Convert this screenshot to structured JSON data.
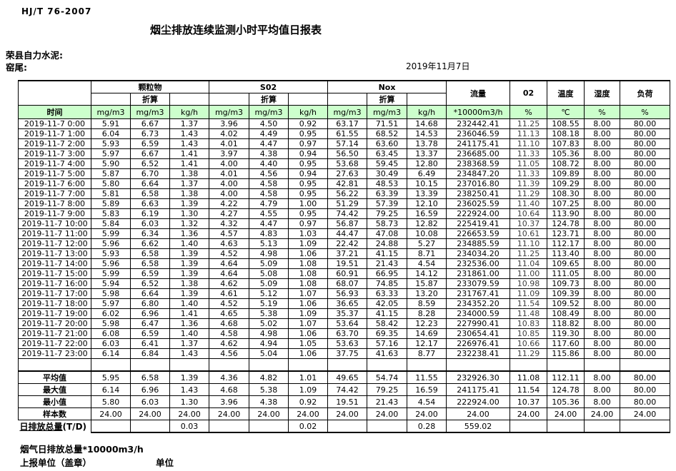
{
  "page": {
    "standard_code": "HJ/T  76-2007",
    "title": "烟尘排放连续监测小时平均值日报表",
    "company": "荣县自力水泥:",
    "site": "窑尾:",
    "date": "2019年11月7日",
    "footnote": "烟气日排放总量*10000m3/h",
    "report_unit": "上报单位（盖章）",
    "unit_label": "单位"
  },
  "colors": {
    "header_green": "#CCFFCC",
    "border": "#000000"
  },
  "table": {
    "time_header": "时间",
    "groups": {
      "pm": "颗粒物",
      "so2": "S02",
      "nox": "Nox"
    },
    "converted_label": "折算",
    "flow_header": "流量",
    "o2_header": "02",
    "temp_header": "温度",
    "humidity_header": "湿度",
    "load_header": "负荷",
    "units": [
      "mg/m3",
      "mg/m3",
      "kg/h",
      "mg/m3",
      "mg/m3",
      "kg/h",
      "mg/m3",
      "mg/m3",
      "kg/h",
      "*10000m3/h",
      "%",
      "℃",
      "%",
      "%"
    ],
    "rows": [
      {
        "time": "2019-11-7 0:00",
        "values": [
          "5.91",
          "6.67",
          "1.37",
          "3.96",
          "4.50",
          "0.92",
          "63.17",
          "71.51",
          "14.68",
          "232442.41",
          "11.25",
          "108.55",
          "8.00",
          "80.00"
        ]
      },
      {
        "time": "2019-11-7 1:00",
        "values": [
          "6.04",
          "6.73",
          "1.43",
          "4.02",
          "4.49",
          "0.95",
          "61.55",
          "68.52",
          "14.53",
          "236046.59",
          "11.13",
          "108.18",
          "8.00",
          "80.00"
        ]
      },
      {
        "time": "2019-11-7 2:00",
        "values": [
          "5.93",
          "6.59",
          "1.43",
          "4.01",
          "4.47",
          "0.97",
          "57.14",
          "63.60",
          "13.78",
          "241175.41",
          "11.10",
          "107.83",
          "8.00",
          "80.00"
        ]
      },
      {
        "time": "2019-11-7 3:00",
        "values": [
          "5.97",
          "6.67",
          "1.41",
          "3.97",
          "4.38",
          "0.94",
          "56.50",
          "63.45",
          "13.37",
          "236685.00",
          "11.33",
          "105.36",
          "8.00",
          "80.00"
        ]
      },
      {
        "time": "2019-11-7 4:00",
        "values": [
          "5.90",
          "6.52",
          "1.41",
          "4.00",
          "4.40",
          "0.95",
          "53.68",
          "59.45",
          "12.80",
          "238368.59",
          "11.05",
          "108.72",
          "8.00",
          "80.00"
        ]
      },
      {
        "time": "2019-11-7 5:00",
        "values": [
          "5.87",
          "6.70",
          "1.38",
          "4.01",
          "4.56",
          "0.94",
          "27.63",
          "30.49",
          "6.49",
          "234847.20",
          "11.33",
          "109.89",
          "8.00",
          "80.00"
        ]
      },
      {
        "time": "2019-11-7 6:00",
        "values": [
          "5.80",
          "6.64",
          "1.37",
          "4.00",
          "4.58",
          "0.95",
          "42.81",
          "48.53",
          "10.15",
          "237016.80",
          "11.39",
          "109.29",
          "8.00",
          "80.00"
        ]
      },
      {
        "time": "2019-11-7 7:00",
        "values": [
          "5.81",
          "6.58",
          "1.38",
          "4.00",
          "4.58",
          "0.95",
          "56.22",
          "63.39",
          "13.39",
          "238250.41",
          "11.29",
          "108.30",
          "8.00",
          "80.00"
        ]
      },
      {
        "time": "2019-11-7 8:00",
        "values": [
          "5.89",
          "6.63",
          "1.39",
          "4.22",
          "4.79",
          "1.00",
          "51.29",
          "57.39",
          "12.10",
          "236025.59",
          "11.40",
          "107.25",
          "8.00",
          "80.00"
        ]
      },
      {
        "time": "2019-11-7 9:00",
        "values": [
          "5.83",
          "6.19",
          "1.30",
          "4.27",
          "4.55",
          "0.95",
          "74.42",
          "79.25",
          "16.59",
          "222924.00",
          "10.64",
          "113.90",
          "8.00",
          "80.00"
        ]
      },
      {
        "time": "2019-11-7 10:00",
        "values": [
          "5.84",
          "6.03",
          "1.32",
          "4.32",
          "4.47",
          "0.97",
          "56.87",
          "58.73",
          "12.82",
          "225419.41",
          "10.37",
          "124.78",
          "8.00",
          "80.00"
        ]
      },
      {
        "time": "2019-11-7 11:00",
        "values": [
          "5.99",
          "6.34",
          "1.36",
          "4.57",
          "4.83",
          "1.03",
          "44.47",
          "47.08",
          "10.08",
          "226653.59",
          "10.61",
          "123.71",
          "8.00",
          "80.00"
        ]
      },
      {
        "time": "2019-11-7 12:00",
        "values": [
          "5.96",
          "6.62",
          "1.40",
          "4.63",
          "5.13",
          "1.09",
          "22.42",
          "24.88",
          "5.27",
          "234885.59",
          "11.10",
          "112.17",
          "8.00",
          "80.00"
        ]
      },
      {
        "time": "2019-11-7 13:00",
        "values": [
          "5.93",
          "6.58",
          "1.39",
          "4.52",
          "4.98",
          "1.06",
          "37.21",
          "41.15",
          "8.71",
          "234034.20",
          "11.25",
          "113.40",
          "8.00",
          "80.00"
        ]
      },
      {
        "time": "2019-11-7 14:00",
        "values": [
          "5.96",
          "6.58",
          "1.39",
          "4.64",
          "5.09",
          "1.08",
          "19.51",
          "21.43",
          "4.54",
          "232536.00",
          "11.04",
          "109.65",
          "8.00",
          "80.00"
        ]
      },
      {
        "time": "2019-11-7 15:00",
        "values": [
          "5.99",
          "6.59",
          "1.39",
          "4.64",
          "5.08",
          "1.08",
          "60.91",
          "66.95",
          "14.12",
          "231861.00",
          "11.00",
          "111.05",
          "8.00",
          "80.00"
        ]
      },
      {
        "time": "2019-11-7 16:00",
        "values": [
          "5.94",
          "6.52",
          "1.38",
          "4.62",
          "5.09",
          "1.08",
          "68.07",
          "74.85",
          "15.87",
          "233079.59",
          "10.98",
          "109.73",
          "8.00",
          "80.00"
        ]
      },
      {
        "time": "2019-11-7 17:00",
        "values": [
          "5.98",
          "6.64",
          "1.39",
          "4.61",
          "5.12",
          "1.07",
          "56.93",
          "63.33",
          "13.20",
          "231767.41",
          "11.09",
          "109.39",
          "8.00",
          "80.00"
        ]
      },
      {
        "time": "2019-11-7 18:00",
        "values": [
          "5.97",
          "6.80",
          "1.40",
          "4.52",
          "5.19",
          "1.06",
          "36.65",
          "42.05",
          "8.59",
          "234352.20",
          "11.54",
          "109.52",
          "8.00",
          "80.00"
        ]
      },
      {
        "time": "2019-11-7 19:00",
        "values": [
          "6.02",
          "6.96",
          "1.41",
          "4.65",
          "5.38",
          "1.09",
          "35.37",
          "41.15",
          "8.28",
          "234000.59",
          "11.48",
          "108.49",
          "8.00",
          "80.00"
        ]
      },
      {
        "time": "2019-11-7 20:00",
        "values": [
          "5.98",
          "6.47",
          "1.36",
          "4.68",
          "5.02",
          "1.07",
          "53.64",
          "58.42",
          "12.23",
          "227990.41",
          "10.83",
          "118.82",
          "8.00",
          "80.00"
        ]
      },
      {
        "time": "2019-11-7 21:00",
        "values": [
          "6.08",
          "6.59",
          "1.40",
          "4.58",
          "4.98",
          "1.06",
          "63.70",
          "69.35",
          "14.69",
          "230654.41",
          "10.85",
          "119.30",
          "8.00",
          "80.00"
        ]
      },
      {
        "time": "2019-11-7 22:00",
        "values": [
          "6.03",
          "6.41",
          "1.37",
          "4.62",
          "4.94",
          "1.05",
          "53.63",
          "57.16",
          "12.17",
          "226976.41",
          "10.66",
          "117.60",
          "8.00",
          "80.00"
        ]
      },
      {
        "time": "2019-11-7 23:00",
        "values": [
          "6.14",
          "6.84",
          "1.43",
          "4.56",
          "5.04",
          "1.06",
          "37.75",
          "41.63",
          "8.77",
          "232238.41",
          "11.29",
          "115.86",
          "8.00",
          "80.00"
        ]
      }
    ],
    "summary": [
      {
        "label": "平均值",
        "values": [
          "5.95",
          "6.58",
          "1.39",
          "4.36",
          "4.82",
          "1.01",
          "49.65",
          "54.74",
          "11.55",
          "232926.30",
          "11.08",
          "112.11",
          "8.00",
          "80.00"
        ]
      },
      {
        "label": "最大值",
        "values": [
          "6.14",
          "6.96",
          "1.43",
          "4.68",
          "5.38",
          "1.09",
          "74.42",
          "79.25",
          "16.59",
          "241175.41",
          "11.54",
          "124.78",
          "8.00",
          "80.00"
        ]
      },
      {
        "label": "最小值",
        "values": [
          "5.80",
          "6.03",
          "1.30",
          "3.96",
          "4.38",
          "0.92",
          "19.51",
          "21.43",
          "4.54",
          "222924.00",
          "10.37",
          "105.36",
          "8.00",
          "80.00"
        ]
      },
      {
        "label": "样本数",
        "values": [
          "24.00",
          "24.00",
          "24.00",
          "24.00",
          "24.00",
          "24.00",
          "24.00",
          "24.00",
          "24.00",
          "24.00",
          "24.00",
          "24.00",
          "24.00",
          "24.00"
        ]
      }
    ],
    "daily_total": {
      "label": "日排放总量",
      "suffix": "(T/D)",
      "values": [
        "",
        "",
        "0.03",
        "",
        "",
        "0.02",
        "",
        "",
        "0.28",
        "559.02",
        "",
        "",
        "",
        ""
      ]
    }
  }
}
